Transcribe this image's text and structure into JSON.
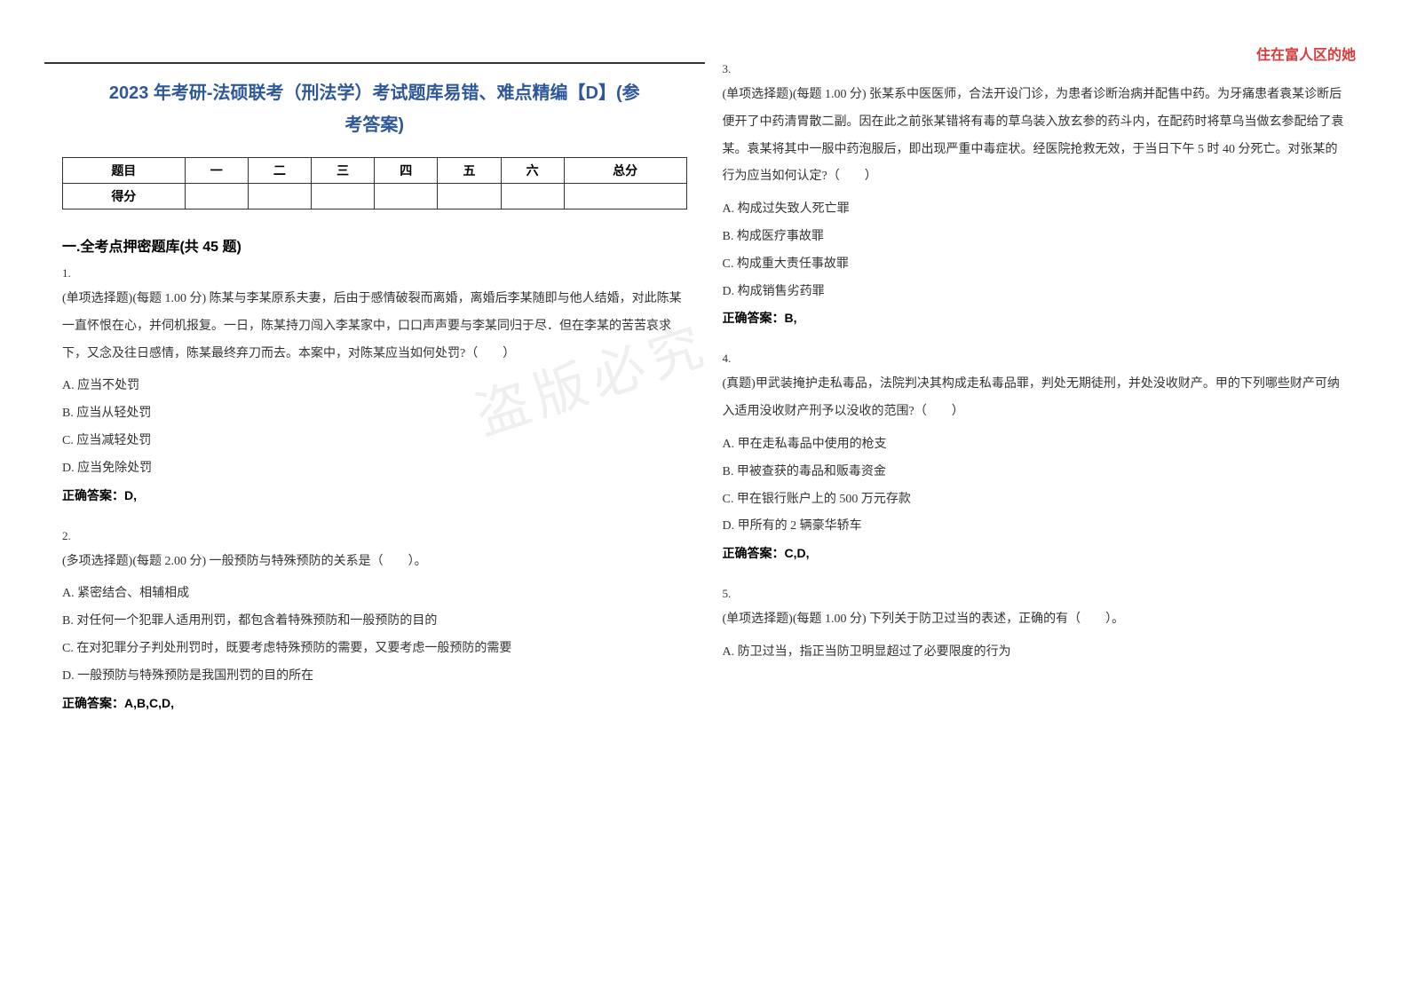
{
  "header_right": "住在富人区的她",
  "title_line1": "2023 年考研-法硕联考（刑法学）考试题库易错、难点精编【D】(参",
  "title_line2": "考答案)",
  "score_table": {
    "row1": [
      "题目",
      "一",
      "二",
      "三",
      "四",
      "五",
      "六",
      "总分"
    ],
    "row2_label": "得分"
  },
  "section_title": "一.全考点押密题库(共 45 题)",
  "watermark": "盗版必究",
  "questions": [
    {
      "num": "1.",
      "text": "(单项选择题)(每题 1.00 分) 陈某与李某原系夫妻，后由于感情破裂而离婚，离婚后李某随即与他人结婚，对此陈某一直怀恨在心，并伺机报复。一日，陈某持刀闯入李某家中，口口声声要与李某同归于尽．但在李某的苦苦哀求下，又念及往日感情，陈某最终弃刀而去。本案中，对陈某应当如何处罚?（　　）",
      "opts": [
        "A. 应当不处罚",
        "B. 应当从轻处罚",
        "C. 应当减轻处罚",
        "D. 应当免除处罚"
      ],
      "answer": "正确答案：D,"
    },
    {
      "num": "2.",
      "text": "(多项选择题)(每题 2.00 分) 一般预防与特殊预防的关系是（　　）。",
      "opts": [
        "A. 紧密结合、相辅相成",
        "B. 对任何一个犯罪人适用刑罚，都包含着特殊预防和一般预防的目的",
        "C. 在对犯罪分子判处刑罚时，既要考虑特殊预防的需要，又要考虑一般预防的需要",
        "D. 一般预防与特殊预防是我国刑罚的目的所在"
      ],
      "answer": "正确答案：A,B,C,D,"
    },
    {
      "num": "3.",
      "text": "(单项选择题)(每题 1.00 分) 张某系中医医师，合法开设门诊，为患者诊断治病并配售中药。为牙痛患者袁某诊断后便开了中药清胃散二副。因在此之前张某错将有毒的草乌装入放玄参的药斗内，在配药时将草乌当做玄参配给了袁某。袁某将其中一服中药泡服后，即出现严重中毒症状。经医院抢救无效，于当日下午 5 时 40 分死亡。对张某的行为应当如何认定?（　　）",
      "opts": [
        "A. 构成过失致人死亡罪",
        "B. 构成医疗事故罪",
        "C. 构成重大责任事故罪",
        "D. 构成销售劣药罪"
      ],
      "answer": "正确答案：B,"
    },
    {
      "num": "4.",
      "text": "(真题)甲武装掩护走私毒品，法院判决其构成走私毒品罪，判处无期徒刑，并处没收财产。甲的下列哪些财产可纳入适用没收财产刑予以没收的范围?（　　）",
      "opts": [
        "A. 甲在走私毒品中使用的枪支",
        "B. 甲被查获的毒品和贩毒资金",
        "C. 甲在银行账户上的 500 万元存款",
        "D. 甲所有的 2 辆豪华轿车"
      ],
      "answer": "正确答案：C,D,"
    },
    {
      "num": "5.",
      "text": "(单项选择题)(每题 1.00 分) 下列关于防卫过当的表述，正确的有（　　）。",
      "opts": [
        "A. 防卫过当，指正当防卫明显超过了必要限度的行为"
      ],
      "answer": ""
    }
  ]
}
